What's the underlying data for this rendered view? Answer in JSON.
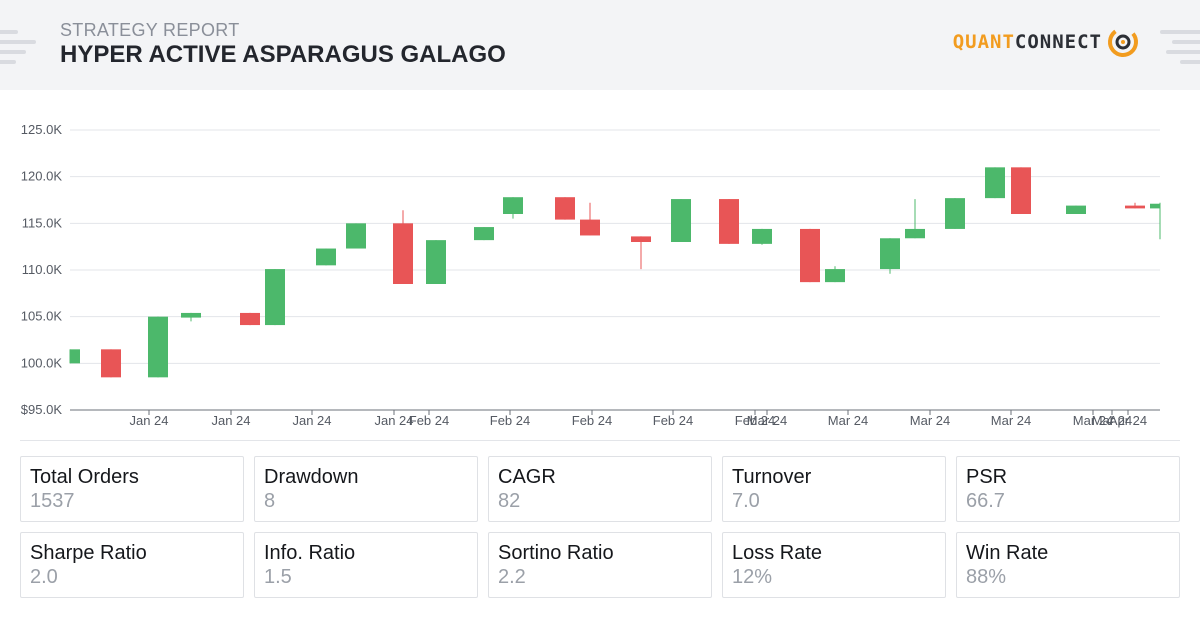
{
  "header": {
    "subtitle": "STRATEGY REPORT",
    "title": "HYPER ACTIVE ASPARAGUS GALAGO",
    "logo_part1": "QUANT",
    "logo_part2": "CONNECT"
  },
  "colors": {
    "up": "#4cb86b",
    "down": "#e85556",
    "brand_orange": "#f29c1f",
    "grid": "#e3e5e9"
  },
  "chart_data": {
    "type": "candlestick",
    "title": "",
    "ylim": [
      95000,
      125000
    ],
    "y_ticks": [
      {
        "value": 95000,
        "label": "$95.0K"
      },
      {
        "value": 100000,
        "label": "100.0K"
      },
      {
        "value": 105000,
        "label": "105.0K"
      },
      {
        "value": 110000,
        "label": "110.0K"
      },
      {
        "value": 115000,
        "label": "115.0K"
      },
      {
        "value": 120000,
        "label": "120.0K"
      },
      {
        "value": 125000,
        "label": "125.0K"
      }
    ],
    "x_tick_labels": [
      "Jan 24",
      "Jan 24",
      "Jan 24",
      "Jan 24",
      "Feb 24",
      "Feb 24",
      "Feb 24",
      "Feb 24",
      "Feb 24",
      "Mar 24",
      "Mar 24",
      "Mar 24",
      "Mar 24",
      "Mar 24",
      "Mar 24",
      "Apr 24"
    ],
    "grid": true,
    "candles": [
      {
        "open": 100000,
        "high": 101500,
        "low": 100000,
        "close": 101500
      },
      {
        "open": 101500,
        "high": 101500,
        "low": 98500,
        "close": 98500
      },
      {
        "open": 98500,
        "high": 105000,
        "low": 98500,
        "close": 105000
      },
      {
        "open": 104900,
        "high": 105400,
        "low": 104500,
        "close": 105400
      },
      {
        "open": 105400,
        "high": 105400,
        "low": 104100,
        "close": 104100
      },
      {
        "open": 104100,
        "high": 110100,
        "low": 104100,
        "close": 110100
      },
      {
        "open": 110500,
        "high": 112300,
        "low": 110500,
        "close": 112300
      },
      {
        "open": 112300,
        "high": 115000,
        "low": 112300,
        "close": 115000
      },
      {
        "open": 115000,
        "high": 116400,
        "low": 108500,
        "close": 108500
      },
      {
        "open": 108500,
        "high": 113200,
        "low": 108500,
        "close": 113200
      },
      {
        "open": 113200,
        "high": 114600,
        "low": 113200,
        "close": 114600
      },
      {
        "open": 116000,
        "high": 117800,
        "low": 115500,
        "close": 117800
      },
      {
        "open": 117800,
        "high": 117800,
        "low": 115400,
        "close": 115400
      },
      {
        "open": 115400,
        "high": 117200,
        "low": 113700,
        "close": 113700
      },
      {
        "open": 113600,
        "high": 113600,
        "low": 110100,
        "close": 113000
      },
      {
        "open": 113000,
        "high": 117600,
        "low": 113000,
        "close": 117600
      },
      {
        "open": 117600,
        "high": 117600,
        "low": 112800,
        "close": 112800
      },
      {
        "open": 112800,
        "high": 114400,
        "low": 112700,
        "close": 114400
      },
      {
        "open": 114400,
        "high": 114400,
        "low": 108700,
        "close": 108700
      },
      {
        "open": 108700,
        "high": 110400,
        "low": 108700,
        "close": 110100
      },
      {
        "open": 110100,
        "high": 113400,
        "low": 109600,
        "close": 113400
      },
      {
        "open": 113400,
        "high": 117600,
        "low": 113400,
        "close": 114400
      },
      {
        "open": 114400,
        "high": 117700,
        "low": 114400,
        "close": 117700
      },
      {
        "open": 117700,
        "high": 121000,
        "low": 117700,
        "close": 121000
      },
      {
        "open": 121000,
        "high": 121000,
        "low": 116000,
        "close": 116000
      },
      {
        "open": 116000,
        "high": 116900,
        "low": 116000,
        "close": 116900
      },
      {
        "open": 116900,
        "high": 117200,
        "low": 116600,
        "close": 116600
      },
      {
        "open": 116600,
        "high": 117200,
        "low": 113300,
        "close": 117100
      }
    ]
  },
  "stats": [
    {
      "label": "Total Orders",
      "value": "1537"
    },
    {
      "label": "Drawdown",
      "value": "8"
    },
    {
      "label": "CAGR",
      "value": "82"
    },
    {
      "label": "Turnover",
      "value": "7.0"
    },
    {
      "label": "PSR",
      "value": "66.7"
    },
    {
      "label": "Sharpe Ratio",
      "value": "2.0"
    },
    {
      "label": "Info. Ratio",
      "value": "1.5"
    },
    {
      "label": "Sortino Ratio",
      "value": "2.2"
    },
    {
      "label": "Loss Rate",
      "value": "12%"
    },
    {
      "label": "Win Rate",
      "value": "88%"
    }
  ]
}
